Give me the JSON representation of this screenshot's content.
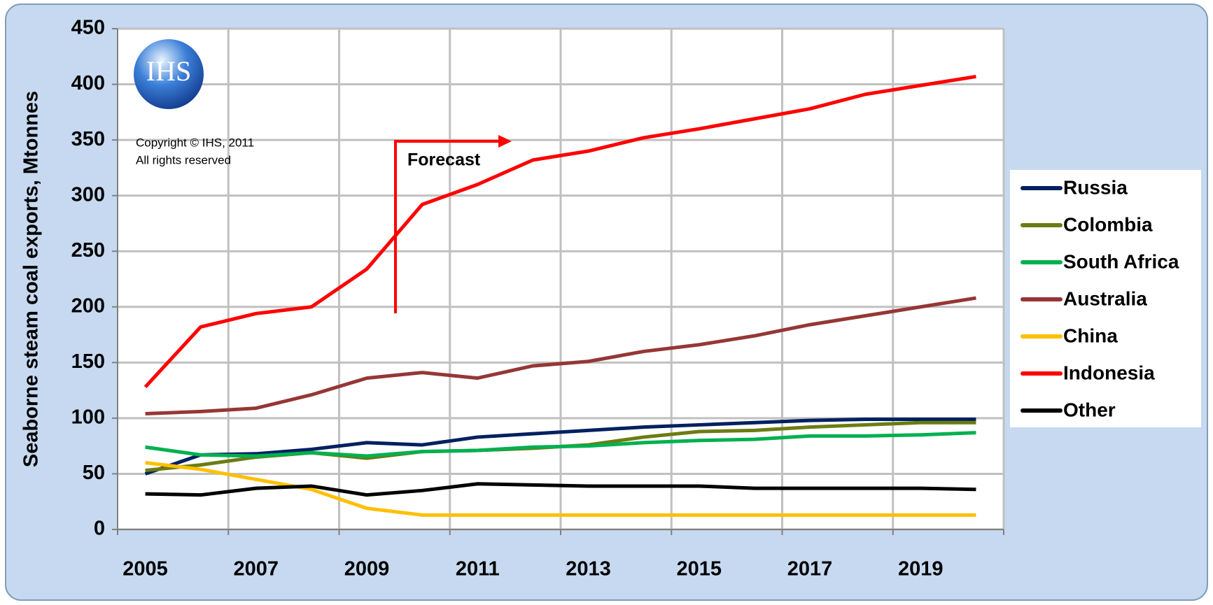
{
  "chart_data": {
    "type": "line",
    "ylabel": "Seaborne steam coal exports, Mtonnes",
    "annotations": {
      "forecast": "Forecast",
      "copyright": [
        "Copyright © IHS, 2011",
        "All rights reserved"
      ],
      "logo": "IHS"
    },
    "categories": [
      "2005",
      null,
      "2007",
      null,
      "2009",
      null,
      "2011",
      null,
      "2013",
      null,
      "2015",
      null,
      "2017",
      null,
      "2019",
      null
    ],
    "ylim": [
      0,
      450
    ],
    "yticks": [
      0,
      50,
      100,
      150,
      200,
      250,
      300,
      350,
      400,
      450
    ],
    "grid": true,
    "legend": "right",
    "series": [
      {
        "name": "Russia",
        "color": "#002060",
        "values": [
          50,
          67,
          68,
          72,
          78,
          76,
          83,
          86,
          89,
          92,
          94,
          96,
          98,
          99,
          99,
          99
        ]
      },
      {
        "name": "Colombia",
        "color": "#6b7c12",
        "values": [
          53,
          58,
          65,
          69,
          64,
          70,
          71,
          73,
          76,
          83,
          88,
          89,
          92,
          94,
          96,
          96
        ]
      },
      {
        "name": "South Africa",
        "color": "#00b050",
        "values": [
          74,
          67,
          66,
          69,
          66,
          70,
          71,
          74,
          75,
          78,
          80,
          81,
          84,
          84,
          85,
          87
        ]
      },
      {
        "name": "Australia",
        "color": "#953735",
        "values": [
          104,
          106,
          109,
          121,
          136,
          141,
          136,
          147,
          151,
          160,
          166,
          174,
          184,
          192,
          200,
          208
        ]
      },
      {
        "name": "China",
        "color": "#ffc000",
        "values": [
          60,
          54,
          45,
          36,
          19,
          13,
          13,
          13,
          13,
          13,
          13,
          13,
          13,
          13,
          13,
          13
        ]
      },
      {
        "name": "Indonesia",
        "color": "#ff0000",
        "values": [
          128,
          182,
          194,
          200,
          234,
          292,
          310,
          332,
          340,
          352,
          360,
          369,
          378,
          391,
          399,
          407
        ]
      },
      {
        "name": "Other",
        "color": "#000000",
        "values": [
          32,
          31,
          37,
          39,
          31,
          35,
          41,
          40,
          39,
          39,
          39,
          37,
          37,
          37,
          37,
          36
        ]
      }
    ]
  }
}
